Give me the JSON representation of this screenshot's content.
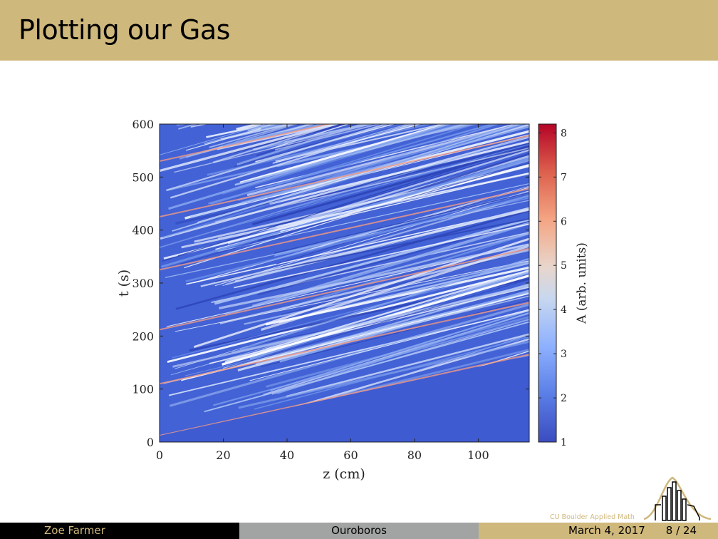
{
  "slide": {
    "title": "Plotting our Gas"
  },
  "footer": {
    "author": "Zoe Farmer",
    "talk": "Ouroboros",
    "date": "March 4, 2017",
    "page": "8 / 24"
  },
  "logo": {
    "text": "CU Boulder Applied Math"
  },
  "colors": {
    "brand_gold": "#cfb87c",
    "footer_gray": "#a2a4a3",
    "footer_black": "#000000"
  },
  "chart_data": {
    "type": "heatmap",
    "xlabel": "z (cm)",
    "ylabel": "t (s)",
    "xlim": [
      0,
      116
    ],
    "ylim": [
      0,
      600
    ],
    "xticks": [
      0,
      20,
      40,
      60,
      80,
      100
    ],
    "yticks": [
      0,
      100,
      200,
      300,
      400,
      500,
      600
    ],
    "colorbar": {
      "label": "A (arb. units)",
      "range": [
        1,
        8.2
      ],
      "ticks": [
        1,
        2,
        3,
        4,
        5,
        6,
        7,
        8
      ],
      "colormap": "coolwarm"
    },
    "content": "diagonal streaks of increasing t with z; uniform low-amplitude region below t = 12 + 1.3 z"
  }
}
